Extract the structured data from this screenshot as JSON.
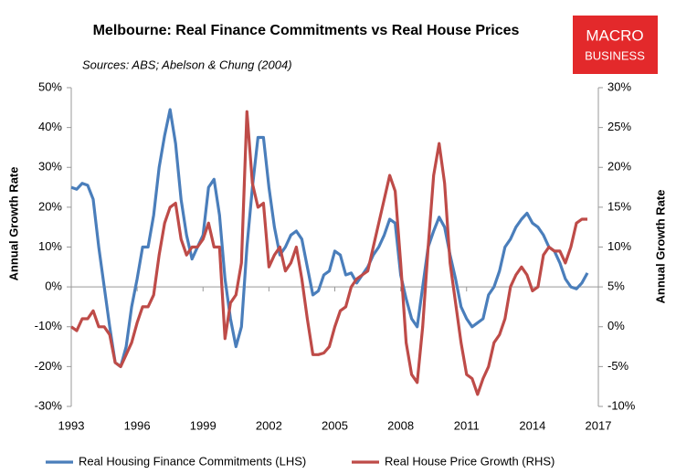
{
  "chart_data": {
    "type": "line",
    "title": "Melbourne: Real Finance Commitments vs Real House Prices",
    "subtitle": "Sources: ABS; Abelson & Chung (2004)",
    "logo_top": "MACRO",
    "logo_bottom": "BUSINESS",
    "ylabel": "Annual Growth Rate",
    "y2label": "Annual Growth Rate",
    "x": [
      1993,
      1993.25,
      1993.5,
      1993.75,
      1994,
      1994.25,
      1994.5,
      1994.75,
      1995,
      1995.25,
      1995.5,
      1995.75,
      1996,
      1996.25,
      1996.5,
      1996.75,
      1997,
      1997.25,
      1997.5,
      1997.75,
      1998,
      1998.25,
      1998.5,
      1998.75,
      1999,
      1999.25,
      1999.5,
      1999.75,
      2000,
      2000.25,
      2000.5,
      2000.75,
      2001,
      2001.25,
      2001.5,
      2001.75,
      2002,
      2002.25,
      2002.5,
      2002.75,
      2003,
      2003.25,
      2003.5,
      2003.75,
      2004,
      2004.25,
      2004.5,
      2004.75,
      2005,
      2005.25,
      2005.5,
      2005.75,
      2006,
      2006.25,
      2006.5,
      2006.75,
      2007,
      2007.25,
      2007.5,
      2007.75,
      2008,
      2008.25,
      2008.5,
      2008.75,
      2009,
      2009.25,
      2009.5,
      2009.75,
      2010,
      2010.25,
      2010.5,
      2010.75,
      2011,
      2011.25,
      2011.5,
      2011.75,
      2012,
      2012.25,
      2012.5,
      2012.75,
      2013,
      2013.25,
      2013.5,
      2013.75,
      2014,
      2014.25,
      2014.5,
      2014.75,
      2015,
      2015.25,
      2015.5,
      2015.75,
      2016,
      2016.25,
      2016.5
    ],
    "series": [
      {
        "name": "Real Housing Finance Commitments (LHS)",
        "color": "#4a7ebb",
        "axis": "y",
        "values": [
          25,
          24.5,
          26,
          25.5,
          22,
          10,
          0,
          -10,
          -19,
          -20,
          -15,
          -5,
          2,
          10,
          10,
          18,
          30,
          38,
          44.5,
          36,
          22,
          13,
          7,
          10,
          13,
          25,
          27,
          18,
          2,
          -8,
          -15,
          -10,
          10,
          25,
          37.5,
          37.5,
          25,
          15,
          8,
          10,
          13,
          14,
          12,
          5,
          -2,
          -1,
          3,
          4,
          9,
          8,
          3,
          3.5,
          1,
          3,
          5,
          8,
          10,
          13,
          17,
          16,
          3,
          -3,
          -8,
          -10,
          0,
          10,
          14,
          17.5,
          15,
          8,
          2,
          -5,
          -8,
          -10,
          -9,
          -8,
          -2,
          0,
          4,
          10,
          12,
          15,
          17,
          18.5,
          16,
          15,
          13,
          10,
          9,
          6,
          2,
          0,
          -0.5,
          1,
          3.5
        ]
      },
      {
        "name": "Real House Price Growth (RHS)",
        "color": "#be4b48",
        "axis": "y2",
        "values": [
          0,
          -0.5,
          1,
          1,
          2,
          0,
          0,
          -1,
          -4.5,
          -5,
          -3.5,
          -2,
          0.5,
          2.5,
          2.5,
          4,
          9,
          13,
          15,
          15.5,
          11,
          9,
          10,
          10,
          11,
          13,
          10,
          10,
          -1.5,
          3,
          4,
          8,
          27,
          18,
          15,
          15.5,
          7.5,
          9,
          10,
          7,
          8,
          10,
          6,
          1,
          -3.5,
          -3.5,
          -3.3,
          -2.5,
          0,
          2,
          2.5,
          5,
          6,
          6.5,
          7,
          10,
          13,
          16,
          19,
          17,
          8,
          -2,
          -6,
          -7,
          0,
          10,
          19,
          23,
          18,
          8,
          3,
          -2,
          -6,
          -6.5,
          -8.5,
          -6.5,
          -5,
          -2,
          -1,
          1,
          5,
          6.5,
          7.5,
          6.5,
          4.5,
          5,
          9,
          10,
          9.5,
          9.5,
          8,
          10,
          13,
          13.5,
          13.5
        ]
      }
    ],
    "xlim": [
      1993,
      2017
    ],
    "xticks": [
      1993,
      1996,
      1999,
      2002,
      2005,
      2008,
      2011,
      2014,
      2017
    ],
    "ylim": [
      -30,
      50
    ],
    "yticks": [
      {
        "value": -30,
        "label": "-30%"
      },
      {
        "value": -20,
        "label": "-20%"
      },
      {
        "value": -10,
        "label": "-10%"
      },
      {
        "value": 0,
        "label": "0%"
      },
      {
        "value": 10,
        "label": "10%"
      },
      {
        "value": 20,
        "label": "20%"
      },
      {
        "value": 30,
        "label": "30%"
      },
      {
        "value": 40,
        "label": "40%"
      },
      {
        "value": 50,
        "label": "50%"
      }
    ],
    "y2lim": [
      -10,
      30
    ],
    "y2ticks": [
      {
        "value": -10,
        "label": "-10%"
      },
      {
        "value": -5,
        "label": "-5%"
      },
      {
        "value": 0,
        "label": "0%"
      },
      {
        "value": 5,
        "label": "5%"
      },
      {
        "value": 10,
        "label": "10%"
      },
      {
        "value": 15,
        "label": "15%"
      },
      {
        "value": 20,
        "label": "20%"
      },
      {
        "value": 25,
        "label": "25%"
      },
      {
        "value": 30,
        "label": "30%"
      }
    ],
    "legend": "bottom"
  }
}
